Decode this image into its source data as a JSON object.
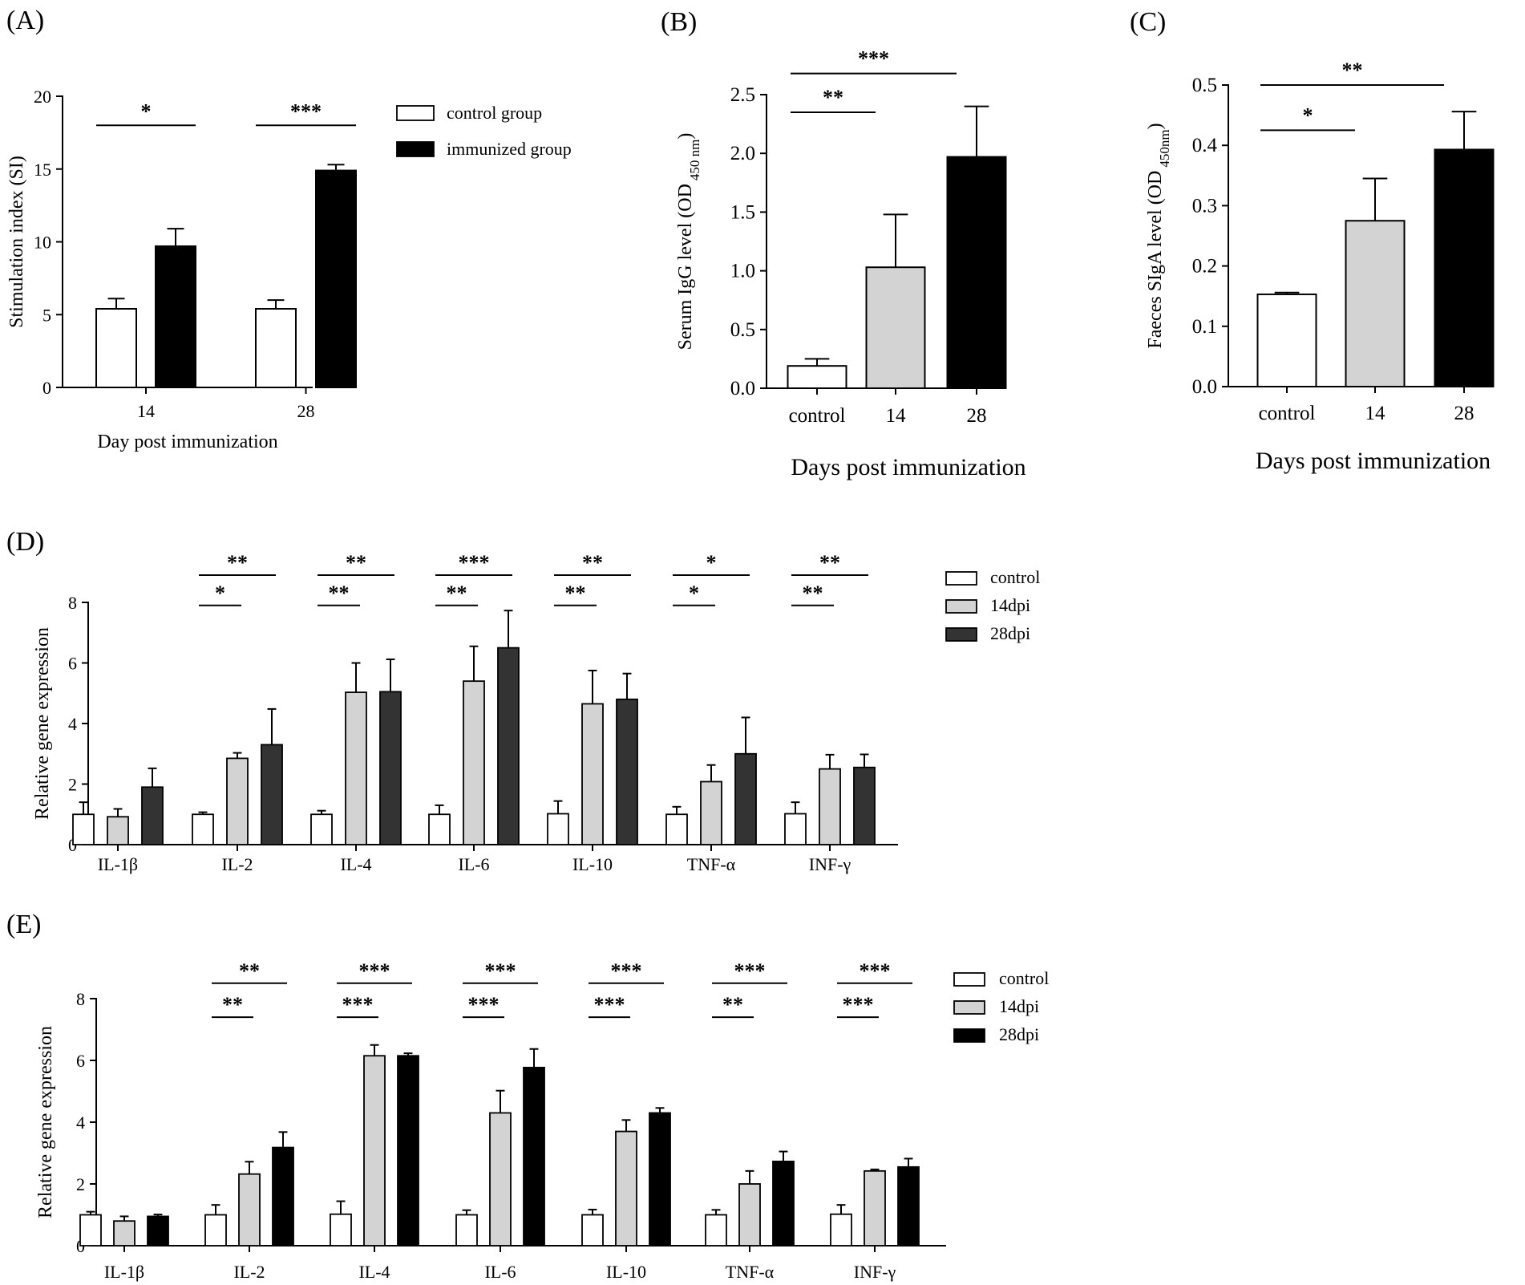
{
  "colors": {
    "control": "#ffffff",
    "light_gray": "#d3d3d3",
    "dark_gray": "#333333",
    "black": "#000000",
    "axis": "#000000"
  },
  "chart_data": [
    {
      "id": "A",
      "panel_label": "(A)",
      "type": "bar",
      "xlabel": "Day post immunization",
      "ylabel": "Stimulation index (SI)",
      "ylim": [
        0,
        20
      ],
      "yticks": [
        "0",
        "5",
        "10",
        "15",
        "20"
      ],
      "categories": [
        "14",
        "28"
      ],
      "series": [
        {
          "name": "control group",
          "color": "#ffffff",
          "values": [
            5.4,
            5.4
          ],
          "errors": [
            0.7,
            0.6
          ]
        },
        {
          "name": "immunized group",
          "color": "#000000",
          "values": [
            9.7,
            14.9
          ],
          "errors": [
            1.2,
            0.4
          ]
        }
      ],
      "legend": "top-right",
      "significance": [
        {
          "stars": "*",
          "category": 0,
          "from": 0,
          "to": 1,
          "y": 18.0
        },
        {
          "stars": "***",
          "category": 1,
          "from": 0,
          "to": 1,
          "y": 18.0
        }
      ]
    },
    {
      "id": "B",
      "panel_label": "(B)",
      "type": "bar",
      "xlabel": "Days post immunization",
      "ylabel": "Serum IgG level (OD",
      "ylabel_sub": "450 nm",
      "ylabel_end": ")",
      "ylim": [
        0,
        2.5
      ],
      "yticks": [
        "0.0",
        "0.5",
        "1.0",
        "1.5",
        "2.0",
        "2.5"
      ],
      "categories": [
        "control",
        "14",
        "28"
      ],
      "series": [
        {
          "name": "Serum IgG",
          "values": [
            0.19,
            1.03,
            1.97
          ],
          "errors": [
            0.06,
            0.45,
            0.43
          ],
          "colors": [
            "#ffffff",
            "#d3d3d3",
            "#000000"
          ]
        }
      ],
      "significance": [
        {
          "stars": "**",
          "from": 0,
          "to": 1,
          "y": 2.35
        },
        {
          "stars": "***",
          "from": 0,
          "to": 2,
          "y": 2.68
        }
      ]
    },
    {
      "id": "C",
      "panel_label": "(C)",
      "type": "bar",
      "xlabel": "Days post immunization",
      "ylabel": "Faeces SIgA level (OD",
      "ylabel_sub": "450nm",
      "ylabel_end": ")",
      "ylim": [
        0,
        0.5
      ],
      "yticks": [
        "0.0",
        "0.1",
        "0.2",
        "0.3",
        "0.4",
        "0.5"
      ],
      "categories": [
        "control",
        "14",
        "28"
      ],
      "series": [
        {
          "name": "Faeces SIgA",
          "values": [
            0.153,
            0.275,
            0.393
          ],
          "errors": [
            0.003,
            0.07,
            0.063
          ],
          "colors": [
            "#ffffff",
            "#d3d3d3",
            "#000000"
          ]
        }
      ],
      "significance": [
        {
          "stars": "*",
          "from": 0,
          "to": 1,
          "y": 0.425
        },
        {
          "stars": "**",
          "from": 0,
          "to": 2,
          "y": 0.5
        }
      ]
    },
    {
      "id": "D",
      "panel_label": "(D)",
      "type": "bar",
      "xlabel": "",
      "ylabel": "Relative gene expression",
      "ylim": [
        0,
        8
      ],
      "yticks": [
        "0",
        "2",
        "4",
        "6",
        "8"
      ],
      "categories": [
        "IL-1β",
        "IL-2",
        "IL-4",
        "IL-6",
        "IL-10",
        "TNF-α",
        "INF-γ"
      ],
      "series": [
        {
          "name": "control",
          "color": "#ffffff",
          "values": [
            1.0,
            1.0,
            1.0,
            1.0,
            1.02,
            1.0,
            1.02
          ],
          "errors": [
            0.4,
            0.07,
            0.12,
            0.3,
            0.42,
            0.25,
            0.38
          ]
        },
        {
          "name": "14dpi",
          "color": "#d3d3d3",
          "values": [
            0.92,
            2.85,
            5.03,
            5.4,
            4.65,
            2.08,
            2.5
          ],
          "errors": [
            0.26,
            0.18,
            0.97,
            1.15,
            1.1,
            0.55,
            0.47
          ]
        },
        {
          "name": "28dpi",
          "color": "#333333",
          "values": [
            1.9,
            3.3,
            5.05,
            6.5,
            4.8,
            3.0,
            2.55
          ],
          "errors": [
            0.62,
            1.18,
            1.07,
            1.23,
            0.85,
            1.2,
            0.43
          ]
        }
      ],
      "legend": "top-right",
      "significance": [
        {
          "stars": "*",
          "category": 1,
          "from": 0,
          "to": 1,
          "y": 7.9
        },
        {
          "stars": "**",
          "category": 1,
          "from": 0,
          "to": 2,
          "y": 8.9
        },
        {
          "stars": "**",
          "category": 2,
          "from": 0,
          "to": 1,
          "y": 7.9
        },
        {
          "stars": "**",
          "category": 2,
          "from": 0,
          "to": 2,
          "y": 8.9
        },
        {
          "stars": "**",
          "category": 3,
          "from": 0,
          "to": 1,
          "y": 7.9
        },
        {
          "stars": "***",
          "category": 3,
          "from": 0,
          "to": 2,
          "y": 8.9
        },
        {
          "stars": "**",
          "category": 4,
          "from": 0,
          "to": 1,
          "y": 7.9
        },
        {
          "stars": "**",
          "category": 4,
          "from": 0,
          "to": 2,
          "y": 8.9
        },
        {
          "stars": "*",
          "category": 5,
          "from": 0,
          "to": 1,
          "y": 7.9
        },
        {
          "stars": "*",
          "category": 5,
          "from": 0,
          "to": 2,
          "y": 8.9
        },
        {
          "stars": "**",
          "category": 6,
          "from": 0,
          "to": 1,
          "y": 7.9
        },
        {
          "stars": "**",
          "category": 6,
          "from": 0,
          "to": 2,
          "y": 8.9
        }
      ]
    },
    {
      "id": "E",
      "panel_label": "(E)",
      "type": "bar",
      "xlabel": "",
      "ylabel": "Relative gene expression",
      "ylim": [
        0,
        8
      ],
      "yticks": [
        "0",
        "2",
        "4",
        "6",
        "8"
      ],
      "categories": [
        "IL-1β",
        "IL-2",
        "IL-4",
        "IL-6",
        "IL-10",
        "TNF-α",
        "INF-γ"
      ],
      "series": [
        {
          "name": "control",
          "color": "#ffffff",
          "values": [
            1.0,
            1.0,
            1.02,
            1.0,
            1.0,
            1.0,
            1.02
          ],
          "errors": [
            0.1,
            0.32,
            0.42,
            0.15,
            0.17,
            0.16,
            0.3
          ]
        },
        {
          "name": "14dpi",
          "color": "#d3d3d3",
          "values": [
            0.8,
            2.32,
            6.15,
            4.3,
            3.7,
            2.0,
            2.42
          ],
          "errors": [
            0.15,
            0.4,
            0.35,
            0.72,
            0.37,
            0.42,
            0.05
          ]
        },
        {
          "name": "28dpi",
          "color": "#000000",
          "values": [
            0.95,
            3.18,
            6.15,
            5.77,
            4.3,
            2.73,
            2.55
          ],
          "errors": [
            0.06,
            0.5,
            0.08,
            0.6,
            0.16,
            0.32,
            0.27
          ]
        }
      ],
      "legend": "top-right",
      "significance": [
        {
          "stars": "**",
          "category": 1,
          "from": 0,
          "to": 1,
          "y": 7.4
        },
        {
          "stars": "**",
          "category": 1,
          "from": 0,
          "to": 2,
          "y": 8.5
        },
        {
          "stars": "***",
          "category": 2,
          "from": 0,
          "to": 1,
          "y": 7.4
        },
        {
          "stars": "***",
          "category": 2,
          "from": 0,
          "to": 2,
          "y": 8.5
        },
        {
          "stars": "***",
          "category": 3,
          "from": 0,
          "to": 1,
          "y": 7.4
        },
        {
          "stars": "***",
          "category": 3,
          "from": 0,
          "to": 2,
          "y": 8.5
        },
        {
          "stars": "***",
          "category": 4,
          "from": 0,
          "to": 1,
          "y": 7.4
        },
        {
          "stars": "***",
          "category": 4,
          "from": 0,
          "to": 2,
          "y": 8.5
        },
        {
          "stars": "**",
          "category": 5,
          "from": 0,
          "to": 1,
          "y": 7.4
        },
        {
          "stars": "***",
          "category": 5,
          "from": 0,
          "to": 2,
          "y": 8.5
        },
        {
          "stars": "***",
          "category": 6,
          "from": 0,
          "to": 1,
          "y": 7.4
        },
        {
          "stars": "***",
          "category": 6,
          "from": 0,
          "to": 2,
          "y": 8.5
        }
      ]
    }
  ]
}
